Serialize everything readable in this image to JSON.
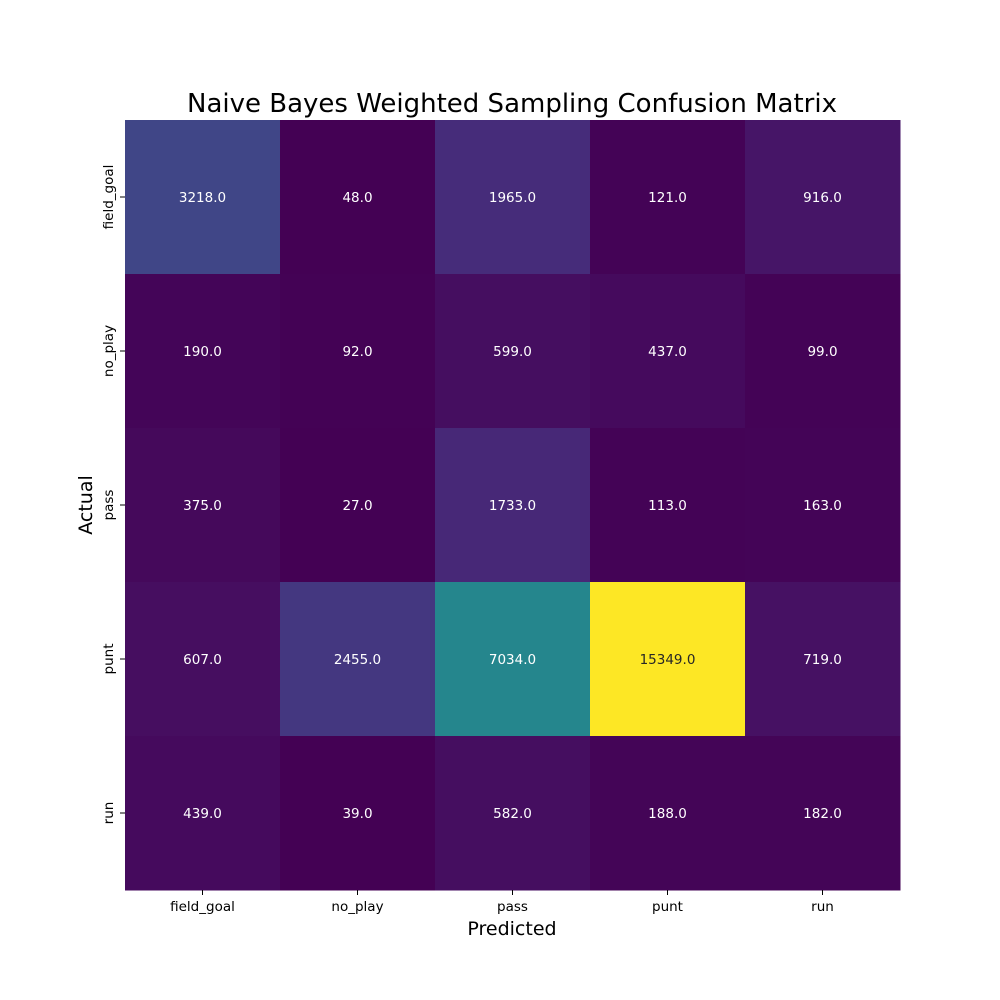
{
  "chart_data": {
    "type": "heatmap",
    "title": "Naive Bayes Weighted Sampling Confusion Matrix",
    "xlabel": "Predicted",
    "ylabel": "Actual",
    "x_categories": [
      "field_goal",
      "no_play",
      "pass",
      "punt",
      "run"
    ],
    "y_categories": [
      "field_goal",
      "no_play",
      "pass",
      "punt",
      "run"
    ],
    "values": [
      [
        3218.0,
        48.0,
        1965.0,
        121.0,
        916.0
      ],
      [
        190.0,
        92.0,
        599.0,
        437.0,
        99.0
      ],
      [
        375.0,
        27.0,
        1733.0,
        113.0,
        163.0
      ],
      [
        607.0,
        2455.0,
        7034.0,
        15349.0,
        719.0
      ],
      [
        439.0,
        39.0,
        582.0,
        188.0,
        182.0
      ]
    ],
    "value_labels": [
      [
        "3218.0",
        "48.0",
        "1965.0",
        "121.0",
        "916.0"
      ],
      [
        "190.0",
        "92.0",
        "599.0",
        "437.0",
        "99.0"
      ],
      [
        "375.0",
        "27.0",
        "1733.0",
        "113.0",
        "163.0"
      ],
      [
        "607.0",
        "2455.0",
        "7034.0",
        "15349.0",
        "719.0"
      ],
      [
        "439.0",
        "39.0",
        "582.0",
        "188.0",
        "182.0"
      ]
    ],
    "colormap": "viridis",
    "color_range": [
      27.0,
      15349.0
    ],
    "colorbar": false,
    "grid": false
  }
}
